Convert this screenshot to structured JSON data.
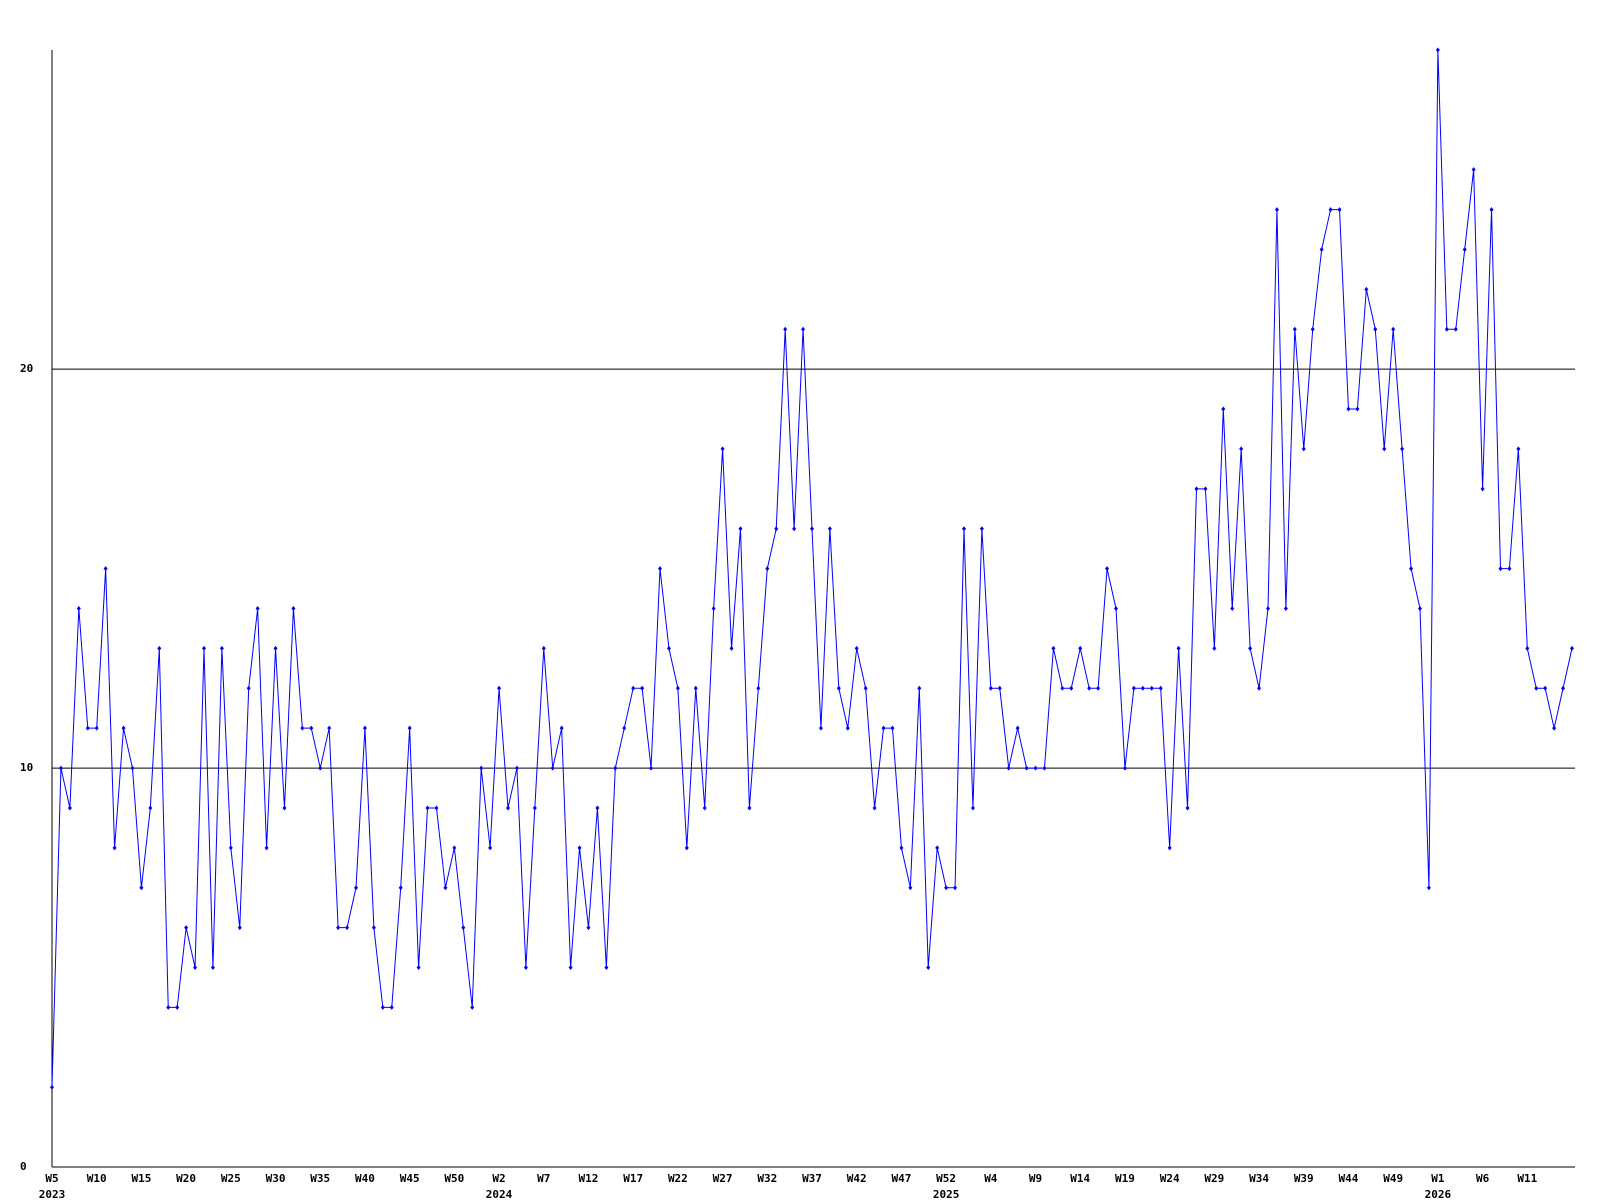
{
  "chart_data": {
    "type": "line",
    "categories": [
      "W5",
      null,
      null,
      null,
      null,
      "W10",
      null,
      null,
      null,
      null,
      "W15",
      null,
      null,
      null,
      null,
      "W20",
      null,
      null,
      null,
      null,
      "W25",
      null,
      null,
      null,
      null,
      "W30",
      null,
      null,
      null,
      null,
      "W35",
      null,
      null,
      null,
      null,
      "W40",
      null,
      null,
      null,
      null,
      "W45",
      null,
      null,
      null,
      null,
      "W50",
      null,
      null,
      null,
      null,
      "W2",
      null,
      null,
      null,
      null,
      "W7",
      null,
      null,
      null,
      null,
      "W12",
      null,
      null,
      null,
      null,
      "W17",
      null,
      null,
      null,
      null,
      "W22",
      null,
      null,
      null,
      null,
      "W27",
      null,
      null,
      null,
      null,
      "W32",
      null,
      null,
      null,
      null,
      "W37",
      null,
      null,
      null,
      null,
      "W42",
      null,
      null,
      null,
      null,
      "W47",
      null,
      null,
      null,
      null,
      "W52",
      null,
      null,
      null,
      null,
      "W4",
      null,
      null,
      null,
      null,
      "W9",
      null,
      null,
      null,
      null,
      "W14",
      null,
      null,
      null,
      null,
      "W19",
      null,
      null,
      null,
      null,
      "W24",
      null,
      null,
      null,
      null,
      "W29",
      null,
      null,
      null,
      null,
      "W34",
      null,
      null,
      null,
      null,
      "W39",
      null,
      null,
      null,
      null,
      "W44",
      null,
      null,
      null,
      null,
      "W49",
      null,
      null,
      null,
      null,
      "W1",
      null,
      null,
      null,
      null,
      "W6",
      null,
      null,
      null,
      null,
      "W11",
      null,
      null,
      null,
      null,
      null
    ],
    "years": [
      "2023",
      null,
      null,
      null,
      null,
      null,
      null,
      null,
      null,
      null,
      null,
      null,
      null,
      null,
      null,
      null,
      null,
      null,
      null,
      null,
      null,
      null,
      null,
      null,
      null,
      null,
      null,
      null,
      null,
      null,
      null,
      null,
      null,
      null,
      null,
      null,
      null,
      null,
      null,
      null,
      null,
      null,
      null,
      null,
      null,
      null,
      null,
      null,
      null,
      null,
      "2024",
      null,
      null,
      null,
      null,
      null,
      null,
      null,
      null,
      null,
      null,
      null,
      null,
      null,
      null,
      null,
      null,
      null,
      null,
      null,
      null,
      null,
      null,
      null,
      null,
      null,
      null,
      null,
      null,
      null,
      null,
      null,
      null,
      null,
      null,
      null,
      null,
      null,
      null,
      null,
      null,
      null,
      null,
      null,
      null,
      null,
      null,
      null,
      null,
      null,
      "2025",
      null,
      null,
      null,
      null,
      null,
      null,
      null,
      null,
      null,
      null,
      null,
      null,
      null,
      null,
      null,
      null,
      null,
      null,
      null,
      null,
      null,
      null,
      null,
      null,
      null,
      null,
      null,
      null,
      null,
      null,
      null,
      null,
      null,
      null,
      null,
      null,
      null,
      null,
      null,
      null,
      null,
      null,
      null,
      null,
      null,
      null,
      null,
      null,
      null,
      null,
      null,
      null,
      null,
      null,
      "2026",
      null,
      null,
      null,
      null,
      null,
      null,
      null,
      null,
      null,
      null,
      null,
      null,
      null,
      null,
      null
    ],
    "series": [
      {
        "color": "#0000ff",
        "values": [
          2,
          10,
          9,
          14,
          11,
          11,
          15,
          8,
          11,
          10,
          7,
          9,
          13,
          4,
          4,
          6,
          5,
          13,
          5,
          13,
          8,
          6,
          12,
          14,
          8,
          13,
          9,
          14,
          11,
          11,
          10,
          11,
          6,
          6,
          7,
          11,
          6,
          4,
          4,
          7,
          11,
          5,
          9,
          9,
          7,
          8,
          6,
          4,
          10,
          8,
          12,
          9,
          10,
          5,
          9,
          13,
          10,
          11,
          5,
          8,
          6,
          9,
          5,
          10,
          11,
          12,
          12,
          10,
          15,
          13,
          12,
          8,
          12,
          9,
          14,
          18,
          13,
          16,
          9,
          12,
          15,
          16,
          21,
          16,
          21,
          16,
          11,
          16,
          12,
          11,
          13,
          12,
          9,
          11,
          11,
          8,
          7,
          12,
          5,
          8,
          7,
          7,
          16,
          9,
          16,
          12,
          12,
          10,
          11,
          10,
          10,
          10,
          13,
          12,
          12,
          13,
          12,
          12,
          15,
          14,
          10,
          12,
          12,
          12,
          12,
          8,
          13,
          9,
          17,
          17,
          13,
          19,
          14,
          18,
          13,
          12,
          14,
          24,
          14,
          21,
          18,
          21,
          23,
          24,
          24,
          19,
          19,
          22,
          21,
          18,
          21,
          18,
          15,
          14,
          7,
          28,
          21,
          21,
          23,
          25,
          17,
          24,
          15,
          15,
          18,
          13,
          12,
          12,
          11,
          12,
          13
        ]
      }
    ],
    "ylim": [
      0,
      28
    ],
    "yticks": [
      0,
      10,
      20
    ],
    "grid": true
  }
}
